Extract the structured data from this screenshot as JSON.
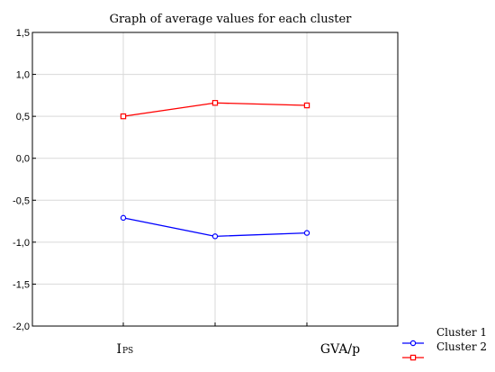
{
  "chart_data": {
    "type": "line",
    "title": "Graph of average values for each cluster",
    "categories": [
      {
        "main": "I",
        "sub": "PS"
      },
      {
        "main": "",
        "sub": ""
      },
      {
        "main": "GVA/p",
        "sub": ""
      }
    ],
    "series": [
      {
        "name": "Cluster 1",
        "color": "#0000ff",
        "marker": "circle",
        "values": [
          -0.71,
          -0.93,
          -0.89
        ]
      },
      {
        "name": "Cluster 2",
        "color": "#ff0000",
        "marker": "square",
        "values": [
          0.5,
          0.66,
          0.63
        ]
      }
    ],
    "ylim": [
      -2.0,
      1.5
    ],
    "yticks": [
      "1,5",
      "1,0",
      "0,5",
      "0,0",
      "-0,5",
      "-1,0",
      "-1,5",
      "-2,0"
    ],
    "grid": true,
    "legend_position": "bottom-right"
  }
}
